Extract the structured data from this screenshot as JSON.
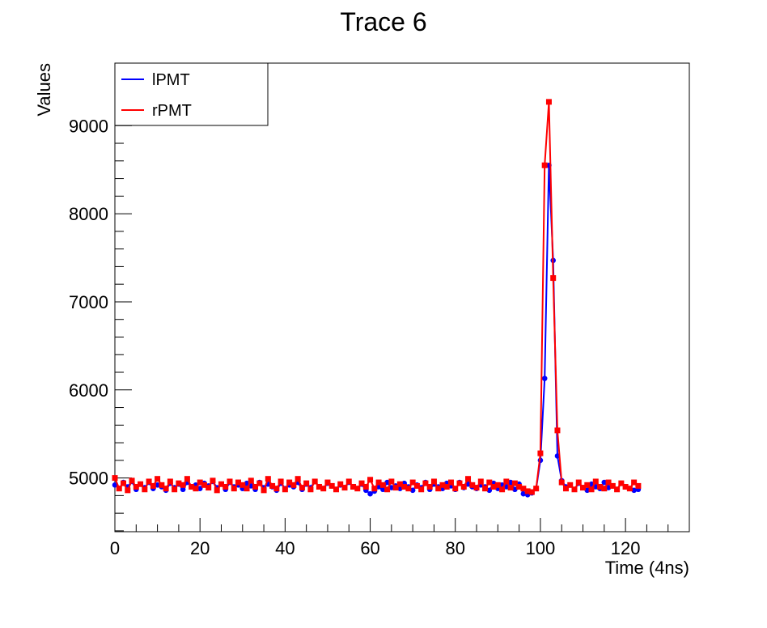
{
  "chart_data": {
    "type": "line",
    "title": "Trace 6",
    "xlabel": "Time (4ns)",
    "ylabel": "Values",
    "xlim": [
      0,
      135
    ],
    "ylim": [
      4390,
      9710
    ],
    "x_ticks": [
      0,
      20,
      40,
      60,
      80,
      100,
      120
    ],
    "y_ticks": [
      5000,
      6000,
      7000,
      8000,
      9000
    ],
    "grid": false,
    "legend_position": "top-left",
    "series": [
      {
        "name": "lPMT",
        "color": "#0000ff",
        "marker": "circle",
        "values": [
          4920,
          4880,
          4950,
          4900,
          4960,
          4870,
          4930,
          4890,
          4950,
          4880,
          4920,
          4900,
          4860,
          4940,
          4890,
          4930,
          4870,
          4950,
          4900,
          4920,
          4880,
          4940,
          4910,
          4960,
          4890,
          4930,
          4870,
          4950,
          4900,
          4920,
          4880,
          4940,
          4910,
          4870,
          4950,
          4890,
          4930,
          4900,
          4860,
          4940,
          4880,
          4920,
          4900,
          4950,
          4870,
          4930,
          4890,
          4960,
          4900,
          4880,
          4940,
          4910,
          4870,
          4920,
          4890,
          4950,
          4900,
          4880,
          4930,
          4860,
          4820,
          4850,
          4900,
          4870,
          4950,
          4890,
          4910,
          4880,
          4940,
          4900,
          4860,
          4920,
          4890,
          4950,
          4870,
          4930,
          4900,
          4880,
          4940,
          4910,
          4870,
          4950,
          4890,
          4930,
          4900,
          4880,
          4920,
          4900,
          4860,
          4940,
          4880,
          4920,
          4900,
          4950,
          4870,
          4930,
          4820,
          4810,
          4830,
          4880,
          5200,
          6130,
          8550,
          7470,
          5250,
          4970,
          4900,
          4920,
          4870,
          4940,
          4890,
          4860,
          4930,
          4900,
          4880,
          4950,
          4890,
          4910,
          4870,
          4940,
          4900,
          4880,
          4860,
          4870
        ],
        "x_start": 0
      },
      {
        "name": "rPMT",
        "color": "#ff0000",
        "marker": "square",
        "values": [
          5000,
          4880,
          4940,
          4860,
          4970,
          4900,
          4930,
          4870,
          4960,
          4910,
          4990,
          4920,
          4880,
          4960,
          4870,
          4940,
          4920,
          4990,
          4900,
          4880,
          4950,
          4920,
          4890,
          4970,
          4860,
          4930,
          4900,
          4960,
          4880,
          4950,
          4920,
          4880,
          4970,
          4900,
          4940,
          4860,
          4990,
          4910,
          4880,
          4960,
          4870,
          4950,
          4920,
          4990,
          4890,
          4940,
          4870,
          4960,
          4900,
          4880,
          4950,
          4910,
          4870,
          4930,
          4890,
          4960,
          4900,
          4880,
          4940,
          4900,
          4980,
          4880,
          4950,
          4920,
          4870,
          4960,
          4890,
          4930,
          4900,
          4880,
          4950,
          4910,
          4870,
          4940,
          4900,
          4960,
          4880,
          4920,
          4900,
          4950,
          4880,
          4940,
          4900,
          4990,
          4920,
          4890,
          4960,
          4880,
          4950,
          4900,
          4920,
          4870,
          4960,
          4890,
          4940,
          4900,
          4880,
          4850,
          4840,
          4880,
          5280,
          8550,
          9270,
          7270,
          5540,
          4950,
          4880,
          4920,
          4870,
          4950,
          4890,
          4920,
          4870,
          4960,
          4900,
          4880,
          4950,
          4910,
          4870,
          4940,
          4900,
          4880,
          4950,
          4910
        ]
      }
    ]
  }
}
